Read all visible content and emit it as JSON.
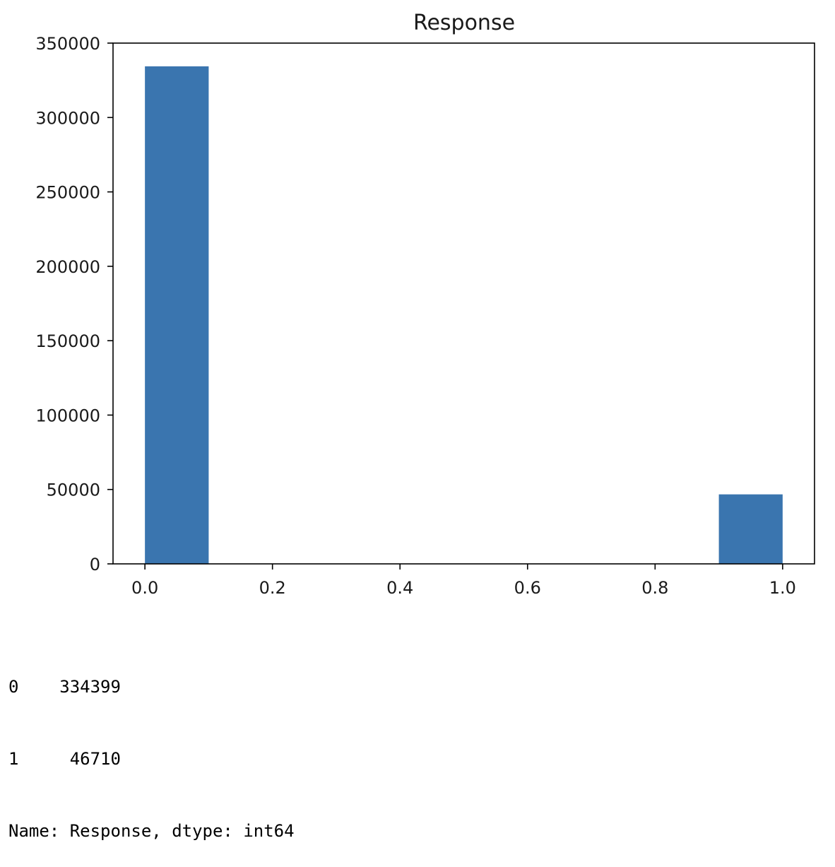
{
  "chart_data": {
    "type": "bar",
    "title": "Response",
    "xlabel": "",
    "ylabel": "",
    "bins": [
      {
        "x0": 0.0,
        "x1": 0.1,
        "value": 334399
      },
      {
        "x0": 0.1,
        "x1": 0.2,
        "value": 0
      },
      {
        "x0": 0.2,
        "x1": 0.3,
        "value": 0
      },
      {
        "x0": 0.3,
        "x1": 0.4,
        "value": 0
      },
      {
        "x0": 0.4,
        "x1": 0.5,
        "value": 0
      },
      {
        "x0": 0.5,
        "x1": 0.6,
        "value": 0
      },
      {
        "x0": 0.6,
        "x1": 0.7,
        "value": 0
      },
      {
        "x0": 0.7,
        "x1": 0.8,
        "value": 0
      },
      {
        "x0": 0.8,
        "x1": 0.9,
        "value": 0
      },
      {
        "x0": 0.9,
        "x1": 1.0,
        "value": 46710
      }
    ],
    "xlim": [
      -0.05,
      1.05
    ],
    "ylim": [
      0,
      350000
    ],
    "x_ticks": [
      0.0,
      0.2,
      0.4,
      0.6,
      0.8,
      1.0
    ],
    "x_tick_labels": [
      "0.0",
      "0.2",
      "0.4",
      "0.6",
      "0.8",
      "1.0"
    ],
    "y_ticks": [
      0,
      50000,
      100000,
      150000,
      200000,
      250000,
      300000,
      350000
    ],
    "y_tick_labels": [
      "0",
      "50000",
      "100000",
      "150000",
      "200000",
      "250000",
      "300000",
      "350000"
    ],
    "bar_color": "#3a75af",
    "grid": false,
    "legend": "none"
  },
  "output_text": {
    "lines": [
      "0    334399",
      "1     46710",
      "Name: Response, dtype: int64"
    ]
  }
}
